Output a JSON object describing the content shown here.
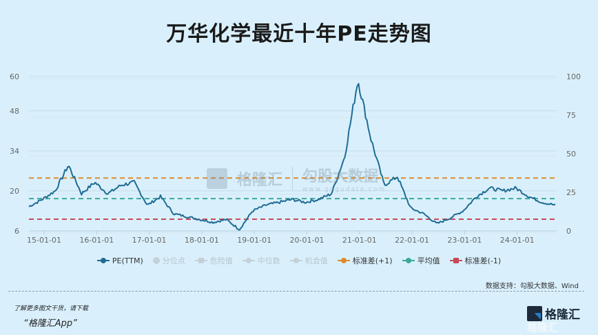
{
  "title": "万华化学最近十年PE走势图",
  "watermark": {
    "brand": "格隆汇",
    "partner": "勾股大数据",
    "partner_url_text": "www.gogudata.com"
  },
  "axes": {
    "left_ticks": [
      "60",
      "48",
      "34",
      "20",
      "6"
    ],
    "right_ticks": [
      "100",
      "75",
      "50",
      "25",
      "0"
    ],
    "x_ticks": [
      "15-01-01",
      "16-01-01",
      "17-01-01",
      "18-01-01",
      "19-01-01",
      "20-01-01",
      "21-01-01",
      "22-01-01",
      "23-01-01",
      "24-01-01"
    ]
  },
  "legend": [
    {
      "label": "PE(TTM)",
      "color": "#1f6b94",
      "active": true
    },
    {
      "label": "分位点",
      "color": "#c4d0d7",
      "active": false
    },
    {
      "label": "危险值",
      "color": "#c4d0d7",
      "active": false
    },
    {
      "label": "中位数",
      "color": "#c4d0d7",
      "active": false
    },
    {
      "label": "机会值",
      "color": "#c4d0d7",
      "active": false
    },
    {
      "label": "标准差(+1)",
      "color": "#e08a2c",
      "active": true
    },
    {
      "label": "平均值",
      "color": "#3aa89a",
      "active": true
    },
    {
      "label": "标准差(-1)",
      "color": "#c8485a",
      "active": true
    }
  ],
  "footer": {
    "source": "数据支持：勾股大数据、Wind",
    "promo_line1": "了解更多图文干货，请下载",
    "promo_line2": "“格隆汇App”",
    "logo_text": "格隆汇"
  },
  "chart_data": {
    "type": "line",
    "title": "万华化学最近十年PE走势图",
    "xlabel": "",
    "ylabel": "",
    "ylim": [
      6,
      60
    ],
    "y2lim": [
      0,
      100
    ],
    "grid": true,
    "legend_position": "bottom",
    "x": [
      "15-01",
      "15-04",
      "15-07",
      "15-10",
      "16-01",
      "16-04",
      "16-07",
      "16-10",
      "17-01",
      "17-04",
      "17-07",
      "17-10",
      "18-01",
      "18-04",
      "18-07",
      "18-10",
      "19-01",
      "19-04",
      "19-07",
      "19-10",
      "20-01",
      "20-04",
      "20-07",
      "20-10",
      "21-01",
      "21-02",
      "21-04",
      "21-07",
      "21-10",
      "22-01",
      "22-04",
      "22-07",
      "22-10",
      "23-01",
      "23-04",
      "23-07",
      "23-10",
      "24-01",
      "24-04",
      "24-07",
      "24-10"
    ],
    "series": [
      {
        "name": "PE(TTM)",
        "values": [
          14.5,
          17,
          20,
          29,
          19,
          23,
          19,
          22,
          23,
          15,
          18,
          12,
          11,
          10,
          9,
          10,
          6.5,
          13,
          15,
          16,
          17,
          16,
          17,
          19,
          32,
          59,
          38,
          22,
          25,
          14,
          12,
          8.5,
          10.5,
          13,
          18,
          21,
          20,
          21,
          18,
          16,
          15
        ]
      },
      {
        "name": "标准差(+1)",
        "values": [
          24.5
        ]
      },
      {
        "name": "平均值",
        "values": [
          17.3
        ]
      },
      {
        "name": "标准差(-1)",
        "values": [
          10.1
        ]
      }
    ]
  }
}
